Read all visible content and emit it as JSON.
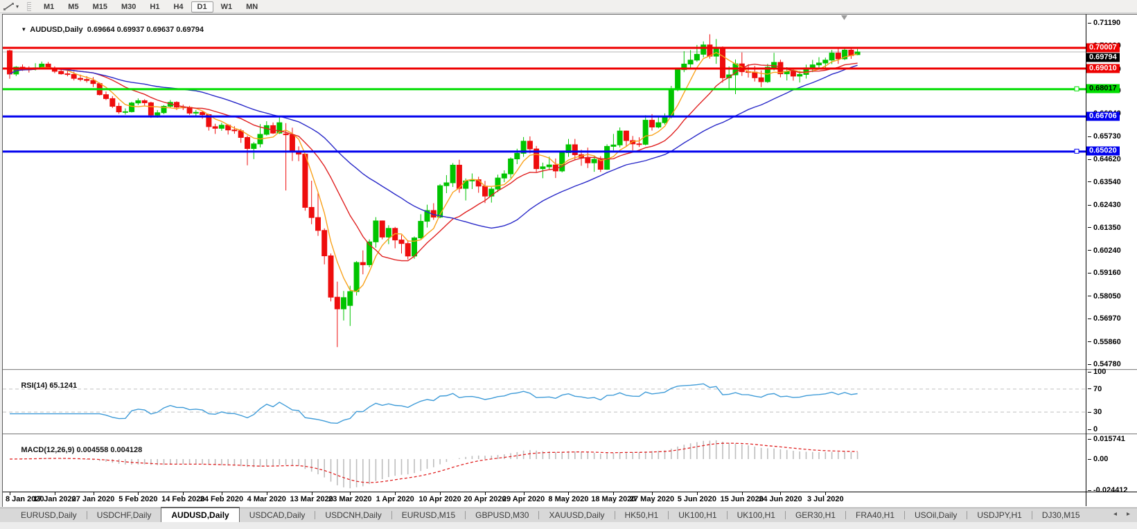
{
  "toolbar": {
    "timeframes": [
      "M1",
      "M5",
      "M15",
      "M30",
      "H1",
      "H4",
      "D1",
      "W1",
      "MN"
    ],
    "active_timeframe": "D1",
    "icons": {
      "chart_tool": "chart-tools-icon",
      "dropdown": "▾",
      "scroll_left": "◂",
      "scroll_right": "▸"
    }
  },
  "chart": {
    "title": {
      "collapse_icon": "▼",
      "symbol": "AUDUSD,Daily",
      "ohlc_text": "0.69664 0.69937 0.69637 0.69794"
    }
  },
  "rsi_panel": {
    "name": "RSI(14)",
    "value": "65.1241"
  },
  "macd_panel": {
    "name": "MACD(12,26,9)",
    "values": "0.004558 0.004128"
  },
  "tabs": {
    "items": [
      "EURUSD,Daily",
      "USDCHF,Daily",
      "AUDUSD,Daily",
      "USDCAD,Daily",
      "USDCNH,Daily",
      "EURUSD,M15",
      "GBPUSD,M30",
      "XAUUSD,Daily",
      "HK50,H1",
      "UK100,H1",
      "UK100,H1",
      "GER30,H1",
      "FRA40,H1",
      "USOil,Daily",
      "USDJPY,H1",
      "DJ30,M15"
    ],
    "active": "AUDUSD,Daily",
    "active_index": 2
  },
  "colors": {
    "bull": "#00C400",
    "bear": "#EE0D0D",
    "grid_dash": "#c0c0c0",
    "current_line": "#b4b4b4"
  },
  "chart_data": {
    "type": "candlestick",
    "symbol": "AUDUSD",
    "timeframe": "Daily",
    "ohlc_current": {
      "open": 0.69664,
      "high": 0.69937,
      "low": 0.69637,
      "close": 0.69794
    },
    "price_axis_ticks": [
      "0.71190",
      "0.70080",
      "0.68970",
      "0.67920",
      "0.66840",
      "0.65730",
      "0.64620",
      "0.63540",
      "0.62430",
      "0.61350",
      "0.60240",
      "0.59160",
      "0.58050",
      "0.56970",
      "0.55860",
      "0.54780"
    ],
    "date_ticks": [
      "8 Jan 2020",
      "17 Jan 2020",
      "27 Jan 2020",
      "5 Feb 2020",
      "14 Feb 2020",
      "24 Feb 2020",
      "4 Mar 2020",
      "13 Mar 2020",
      "23 Mar 2020",
      "1 Apr 2020",
      "10 Apr 2020",
      "20 Apr 2020",
      "29 Apr 2020",
      "8 May 2020",
      "18 May 2020",
      "27 May 2020",
      "5 Jun 2020",
      "15 Jun 2020",
      "24 Jun 2020",
      "3 Jul 2020"
    ],
    "horizontal_lines": [
      {
        "price": 0.70007,
        "label": "0.70007",
        "color": "#EE0000",
        "text_color": "#ffffff",
        "handle": false
      },
      {
        "price": 0.6901,
        "label": "0.69010",
        "color": "#EE0000",
        "text_color": "#ffffff",
        "handle": false
      },
      {
        "price": 0.68017,
        "label": "0.68017",
        "color": "#00DD00",
        "text_color": "#000000",
        "handle": true
      },
      {
        "price": 0.66706,
        "label": "0.66706",
        "color": "#0000EE",
        "text_color": "#ffffff",
        "handle": false
      },
      {
        "price": 0.6502,
        "label": "0.65020",
        "color": "#0000EE",
        "text_color": "#ffffff",
        "handle": true
      }
    ],
    "current_price": {
      "value": 0.69794,
      "label": "0.69794"
    },
    "moving_averages": [
      {
        "name": "ma-fast",
        "period": 5,
        "color": "#F9A21B"
      },
      {
        "name": "ma-medium",
        "period": 13,
        "color": "#E02020"
      },
      {
        "name": "ma-slow",
        "period": 30,
        "color": "#2828C8"
      }
    ],
    "rsi": {
      "period": 14,
      "current": 65.1241,
      "levels": [
        "100",
        "70",
        "30",
        "0"
      ],
      "level_values": [
        100,
        70,
        30,
        0
      ],
      "overbought": 70,
      "oversold": 30,
      "color": "#3E9BD8"
    },
    "macd": {
      "fast": 12,
      "slow": 26,
      "signal_period": 9,
      "current_macd": 0.004558,
      "current_signal": 0.004128,
      "axis_labels": [
        "0.015741",
        "0.00",
        "-0.024412"
      ],
      "axis_values": [
        0.015741,
        0,
        -0.024412
      ],
      "histogram_color": "#BDBDBD",
      "signal_color": "#E02020"
    },
    "candles": [
      [
        0.6985,
        0.699,
        0.685,
        0.6873
      ],
      [
        0.6873,
        0.6911,
        0.6863,
        0.6906
      ],
      [
        0.6906,
        0.6919,
        0.6888,
        0.69
      ],
      [
        0.69,
        0.691,
        0.688,
        0.6896
      ],
      [
        0.6896,
        0.6925,
        0.689,
        0.6903
      ],
      [
        0.6903,
        0.6933,
        0.6897,
        0.6921
      ],
      [
        0.6921,
        0.6931,
        0.6895,
        0.69
      ],
      [
        0.69,
        0.691,
        0.6877,
        0.6886
      ],
      [
        0.6886,
        0.69,
        0.687,
        0.6874
      ],
      [
        0.6874,
        0.6889,
        0.6862,
        0.6871
      ],
      [
        0.6871,
        0.6884,
        0.6842,
        0.6852
      ],
      [
        0.6852,
        0.687,
        0.6838,
        0.6847
      ],
      [
        0.6847,
        0.6863,
        0.6832,
        0.6842
      ],
      [
        0.6842,
        0.6858,
        0.681,
        0.6827
      ],
      [
        0.6827,
        0.6832,
        0.677,
        0.6774
      ],
      [
        0.6774,
        0.6789,
        0.6748,
        0.6755
      ],
      [
        0.6755,
        0.6767,
        0.671,
        0.6718
      ],
      [
        0.6718,
        0.6735,
        0.6682,
        0.6691
      ],
      [
        0.6691,
        0.6708,
        0.6678,
        0.6692
      ],
      [
        0.6692,
        0.674,
        0.6688,
        0.6734
      ],
      [
        0.6734,
        0.6756,
        0.6724,
        0.6745
      ],
      [
        0.6745,
        0.6752,
        0.6722,
        0.6735
      ],
      [
        0.6735,
        0.674,
        0.6662,
        0.6676
      ],
      [
        0.6676,
        0.67,
        0.6663,
        0.6687
      ],
      [
        0.6687,
        0.6724,
        0.668,
        0.6718
      ],
      [
        0.6718,
        0.6748,
        0.671,
        0.6737
      ],
      [
        0.6737,
        0.6742,
        0.67,
        0.6714
      ],
      [
        0.6714,
        0.6726,
        0.67,
        0.6713
      ],
      [
        0.6713,
        0.672,
        0.6677,
        0.6685
      ],
      [
        0.6685,
        0.67,
        0.6672,
        0.6689
      ],
      [
        0.6689,
        0.6695,
        0.6658,
        0.6678
      ],
      [
        0.6678,
        0.6682,
        0.6601,
        0.662
      ],
      [
        0.662,
        0.6634,
        0.6585,
        0.6612
      ],
      [
        0.6612,
        0.6639,
        0.66,
        0.6627
      ],
      [
        0.6627,
        0.6632,
        0.6582,
        0.6604
      ],
      [
        0.6604,
        0.6622,
        0.6586,
        0.66
      ],
      [
        0.66,
        0.6609,
        0.6542,
        0.6568
      ],
      [
        0.6568,
        0.6577,
        0.6434,
        0.6515
      ],
      [
        0.6515,
        0.6546,
        0.6464,
        0.6537
      ],
      [
        0.6537,
        0.6632,
        0.652,
        0.6583
      ],
      [
        0.6583,
        0.6646,
        0.6577,
        0.6625
      ],
      [
        0.6625,
        0.664,
        0.6585,
        0.6589
      ],
      [
        0.6589,
        0.667,
        0.6585,
        0.6639
      ],
      [
        0.6585,
        0.6637,
        0.6313,
        0.6581
      ],
      [
        0.6581,
        0.6615,
        0.6455,
        0.6501
      ],
      [
        0.6501,
        0.6525,
        0.6454,
        0.6488
      ],
      [
        0.6488,
        0.6489,
        0.6216,
        0.6232
      ],
      [
        0.6232,
        0.636,
        0.6151,
        0.6183
      ],
      [
        0.6183,
        0.6302,
        0.6095,
        0.6121
      ],
      [
        0.6121,
        0.6131,
        0.5958,
        0.5999
      ],
      [
        0.5999,
        0.601,
        0.578,
        0.58
      ],
      [
        0.58,
        0.5875,
        0.556,
        0.5744
      ],
      [
        0.5744,
        0.583,
        0.5688,
        0.5798
      ],
      [
        0.576,
        0.5855,
        0.5662,
        0.5827
      ],
      [
        0.5827,
        0.5974,
        0.5808,
        0.5967
      ],
      [
        0.5967,
        0.6025,
        0.591,
        0.5956
      ],
      [
        0.5956,
        0.6078,
        0.5944,
        0.6066
      ],
      [
        0.6066,
        0.6185,
        0.6038,
        0.6167
      ],
      [
        0.6167,
        0.6169,
        0.6078,
        0.6089
      ],
      [
        0.6089,
        0.6146,
        0.6055,
        0.6131
      ],
      [
        0.6131,
        0.6138,
        0.6035,
        0.6075
      ],
      [
        0.6075,
        0.6099,
        0.601,
        0.6058
      ],
      [
        0.6058,
        0.6074,
        0.5982,
        0.5998
      ],
      [
        0.5998,
        0.6092,
        0.5985,
        0.6085
      ],
      [
        0.6085,
        0.6199,
        0.608,
        0.6165
      ],
      [
        0.6165,
        0.6245,
        0.6135,
        0.6217
      ],
      [
        0.6217,
        0.6252,
        0.6172,
        0.6185
      ],
      [
        0.6185,
        0.6344,
        0.618,
        0.6336
      ],
      [
        0.6336,
        0.6387,
        0.63,
        0.635
      ],
      [
        0.635,
        0.6445,
        0.633,
        0.6435
      ],
      [
        0.6435,
        0.6461,
        0.6302,
        0.6323
      ],
      [
        0.6323,
        0.6371,
        0.6265,
        0.6359
      ],
      [
        0.6359,
        0.6395,
        0.632,
        0.6365
      ],
      [
        0.6365,
        0.6379,
        0.6302,
        0.6334
      ],
      [
        0.6334,
        0.6359,
        0.6253,
        0.6286
      ],
      [
        0.6286,
        0.633,
        0.6255,
        0.632
      ],
      [
        0.632,
        0.6389,
        0.6305,
        0.6373
      ],
      [
        0.6373,
        0.641,
        0.6353,
        0.6393
      ],
      [
        0.6393,
        0.6472,
        0.6372,
        0.6465
      ],
      [
        0.6465,
        0.6514,
        0.644,
        0.6492
      ],
      [
        0.6492,
        0.657,
        0.6475,
        0.655
      ],
      [
        0.655,
        0.6573,
        0.6492,
        0.6513
      ],
      [
        0.6513,
        0.6527,
        0.6402,
        0.6418
      ],
      [
        0.6418,
        0.6447,
        0.6372,
        0.6427
      ],
      [
        0.6427,
        0.6476,
        0.6415,
        0.6436
      ],
      [
        0.6436,
        0.6467,
        0.6373,
        0.6407
      ],
      [
        0.6407,
        0.6503,
        0.64,
        0.6495
      ],
      [
        0.6495,
        0.6561,
        0.6475,
        0.6533
      ],
      [
        0.6533,
        0.6561,
        0.6462,
        0.6485
      ],
      [
        0.6485,
        0.6509,
        0.6432,
        0.6472
      ],
      [
        0.6472,
        0.6519,
        0.6421,
        0.6446
      ],
      [
        0.6446,
        0.6478,
        0.6403,
        0.6463
      ],
      [
        0.6463,
        0.6478,
        0.6402,
        0.6415
      ],
      [
        0.6415,
        0.6535,
        0.6412,
        0.6525
      ],
      [
        0.6525,
        0.6585,
        0.6506,
        0.6532
      ],
      [
        0.6532,
        0.6616,
        0.652,
        0.6599
      ],
      [
        0.6599,
        0.6601,
        0.6524,
        0.6553
      ],
      [
        0.6553,
        0.6575,
        0.6506,
        0.6537
      ],
      [
        0.6537,
        0.6569,
        0.6522,
        0.6535
      ],
      [
        0.6535,
        0.6675,
        0.653,
        0.6651
      ],
      [
        0.6651,
        0.668,
        0.6601,
        0.6618
      ],
      [
        0.6618,
        0.6666,
        0.6612,
        0.6639
      ],
      [
        0.6639,
        0.6684,
        0.663,
        0.6667
      ],
      [
        0.6667,
        0.6816,
        0.666,
        0.6797
      ],
      [
        0.6797,
        0.6899,
        0.679,
        0.6894
      ],
      [
        0.6894,
        0.6983,
        0.6882,
        0.6921
      ],
      [
        0.6921,
        0.6988,
        0.6903,
        0.694
      ],
      [
        0.694,
        0.7013,
        0.6932,
        0.6968
      ],
      [
        0.6968,
        0.703,
        0.6953,
        0.7013
      ],
      [
        0.7013,
        0.7064,
        0.6947,
        0.6959
      ],
      [
        0.6959,
        0.7041,
        0.6922,
        0.7001
      ],
      [
        0.7001,
        0.7006,
        0.6832,
        0.6855
      ],
      [
        0.6855,
        0.691,
        0.6799,
        0.6869
      ],
      [
        0.6869,
        0.6943,
        0.6776,
        0.6922
      ],
      [
        0.6922,
        0.6977,
        0.6864,
        0.6884
      ],
      [
        0.6884,
        0.692,
        0.6856,
        0.6882
      ],
      [
        0.6882,
        0.6912,
        0.6837,
        0.6855
      ],
      [
        0.6855,
        0.689,
        0.681,
        0.6836
      ],
      [
        0.6836,
        0.6922,
        0.683,
        0.6906
      ],
      [
        0.6906,
        0.6975,
        0.689,
        0.6929
      ],
      [
        0.6929,
        0.6942,
        0.6857,
        0.6874
      ],
      [
        0.6874,
        0.6906,
        0.6842,
        0.6886
      ],
      [
        0.6886,
        0.6899,
        0.6841,
        0.6863
      ],
      [
        0.6863,
        0.6889,
        0.6832,
        0.6871
      ],
      [
        0.6871,
        0.6918,
        0.6851,
        0.6903
      ],
      [
        0.6903,
        0.6941,
        0.6882,
        0.6917
      ],
      [
        0.6917,
        0.6954,
        0.6901,
        0.6926
      ],
      [
        0.6926,
        0.6952,
        0.6902,
        0.694
      ],
      [
        0.694,
        0.6989,
        0.6921,
        0.6974
      ],
      [
        0.6974,
        0.6998,
        0.6922,
        0.6946
      ],
      [
        0.6946,
        0.7001,
        0.694,
        0.6988
      ],
      [
        0.6988,
        0.6999,
        0.6946,
        0.6962
      ],
      [
        0.69664,
        0.69937,
        0.69637,
        0.69794
      ]
    ]
  }
}
